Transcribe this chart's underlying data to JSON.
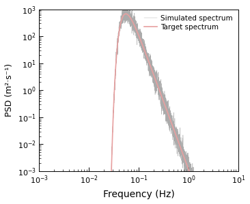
{
  "xlabel": "Frequency (Hz)",
  "ylabel": "PSD (m²·s⁻¹)",
  "xlim": [
    0.001,
    10
  ],
  "ylim": [
    0.001,
    1000
  ],
  "simulated_color": "#888888",
  "target_color": "#e8a0a0",
  "legend_simulated": "Simulated spectrum",
  "legend_target": "Target spectrum",
  "bg_color": "#ffffff",
  "seed": 12345,
  "fp": 0.055,
  "alpha": 130.0,
  "sim_start": 0.018,
  "noise_low": 0.25,
  "noise_high": 0.7
}
